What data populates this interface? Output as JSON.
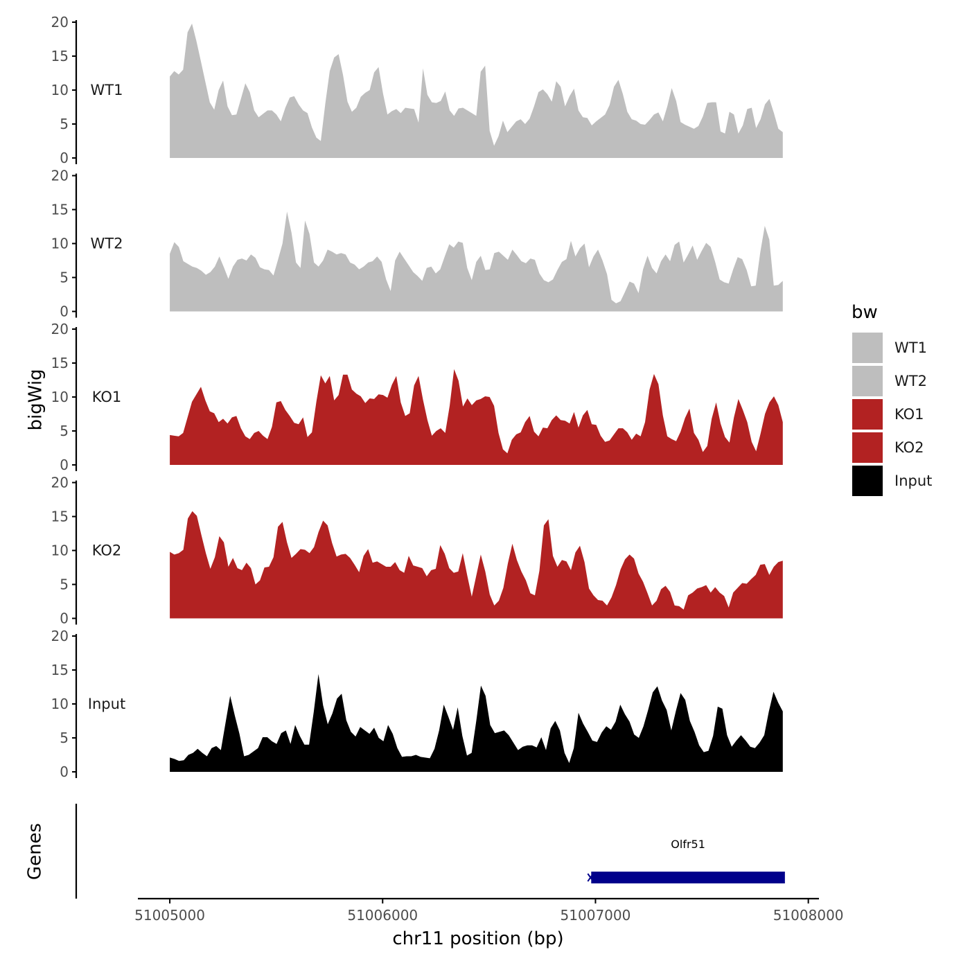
{
  "chart_data": {
    "type": "area",
    "title": "",
    "ylabel": "bigWig",
    "xlabel": "chr11 position (bp)",
    "genes_label": "Genes",
    "ylim": [
      0,
      20
    ],
    "yticks": [
      0,
      5,
      10,
      15,
      20
    ],
    "ytick_labels": [
      "0",
      "5",
      "10",
      "15",
      "20"
    ],
    "xlim": [
      51004850,
      51008050
    ],
    "xticks": [
      51005000,
      51006000,
      51007000,
      51008000
    ],
    "xtick_labels": [
      "51005000",
      "51006000",
      "51007000",
      "51008000"
    ],
    "x_start": 51005000,
    "x_end": 51007880,
    "legend": {
      "title": "bw",
      "entries": [
        {
          "label": "WT1",
          "color": "#bebebe"
        },
        {
          "label": "WT2",
          "color": "#bebebe"
        },
        {
          "label": "KO1",
          "color": "#b22222"
        },
        {
          "label": "KO2",
          "color": "#b22222"
        },
        {
          "label": "Input",
          "color": "#000000"
        }
      ]
    },
    "series": [
      {
        "name": "WT1",
        "color": "#bebebe",
        "values": [
          12,
          12.8,
          12.3,
          13,
          18.5,
          19.8,
          17.2,
          14.2,
          11.2,
          8.2,
          7.1,
          10,
          11.4,
          7.6,
          6.3,
          6.4,
          8.7,
          11,
          9.7,
          7,
          6,
          6.5,
          7,
          7,
          6.4,
          5.4,
          7.4,
          8.9,
          9.1,
          7.9,
          7,
          6.6,
          4.5,
          3,
          2.5,
          8,
          12.8,
          14.8,
          15.3,
          12.2,
          8.3,
          6.8,
          7.4,
          9,
          9.6,
          10,
          12.6,
          13.4,
          9.5,
          6.4,
          6.9,
          7.2,
          6.6,
          7.4,
          7.3,
          7.2,
          5.2,
          13.2,
          9.3,
          8.2,
          8.1,
          8.4,
          9.8,
          7,
          6.2,
          7.3,
          7.4,
          7,
          6.6,
          6.2,
          12.7,
          13.6,
          4,
          1.8,
          3.2,
          5.5,
          3.8,
          4.6,
          5.4,
          5.7,
          5,
          5.8,
          7.6,
          9.7,
          10.1,
          9.4,
          8.3,
          11.3,
          10.5,
          7.6,
          9.1,
          10.2,
          7,
          6,
          5.9,
          4.8,
          5.4,
          5.9,
          6.4,
          7.8,
          10.5,
          11.5,
          9.4,
          6.8,
          5.7,
          5.5,
          5,
          4.9,
          5.6,
          6.4,
          6.7,
          5.4,
          7.6,
          10.3,
          8.4,
          5.3,
          4.9,
          4.6,
          4.3,
          4.7,
          6.1,
          8.1,
          8.2,
          8.2,
          3.9,
          3.6,
          6.8,
          6.4,
          3.6,
          4.8,
          7.2,
          7.4,
          4.4,
          5.7,
          7.9,
          8.7,
          6.6,
          4.3,
          3.8
        ]
      },
      {
        "name": "WT2",
        "color": "#bebebe",
        "values": [
          8.5,
          10.2,
          9.5,
          7.4,
          7,
          6.6,
          6.4,
          6,
          5.4,
          5.8,
          6.6,
          8.1,
          6.5,
          4.8,
          6.6,
          7.6,
          7.8,
          7.5,
          8.4,
          7.9,
          6.5,
          6.2,
          6.1,
          5.3,
          7.6,
          10,
          14.7,
          11.6,
          7.2,
          6.4,
          13.4,
          11.4,
          7.2,
          6.6,
          7.5,
          9.1,
          8.8,
          8.4,
          8.6,
          8.4,
          7.2,
          6.9,
          6.2,
          6.6,
          7.2,
          7.4,
          8.1,
          7.3,
          4.7,
          3,
          7.5,
          8.8,
          7.8,
          6.8,
          5.8,
          5.2,
          4.5,
          6.4,
          6.6,
          5.6,
          6.2,
          8.1,
          9.9,
          9.4,
          10.3,
          10.1,
          6.4,
          4.6,
          7.3,
          8.2,
          6.1,
          6.2,
          8.6,
          8.8,
          8.2,
          7.6,
          9.1,
          8.3,
          7.4,
          7.1,
          7.8,
          7.6,
          5.6,
          4.6,
          4.3,
          4.7,
          6.1,
          7.3,
          7.7,
          10.4,
          8.1,
          9.3,
          10,
          6.5,
          8.1,
          9.1,
          7.5,
          5.5,
          1.7,
          1.2,
          1.5,
          2.9,
          4.4,
          4.1,
          2.7,
          6.2,
          8.2,
          6.4,
          5.6,
          7.4,
          8.4,
          7.4,
          9.8,
          10.3,
          7.2,
          8.4,
          9.7,
          7.6,
          8.9,
          10.1,
          9.5,
          7.3,
          4.7,
          4.3,
          4.1,
          6.2,
          8,
          7.7,
          6.1,
          3.7,
          3.8,
          8.7,
          12.6,
          10.6,
          3.8,
          3.9,
          4.5
        ]
      },
      {
        "name": "KO1",
        "color": "#b22222",
        "values": [
          4.4,
          4.3,
          4.2,
          4.7,
          7,
          9.3,
          10.4,
          11.5,
          9.5,
          7.9,
          7.6,
          6.3,
          6.8,
          6.1,
          7,
          7.2,
          5.4,
          4.2,
          3.8,
          4.7,
          5,
          4.3,
          3.8,
          5.6,
          9.2,
          9.4,
          8.1,
          7.2,
          6.2,
          6,
          7,
          4.1,
          4.8,
          9.3,
          13.2,
          12,
          13.1,
          9.5,
          10.3,
          13.3,
          13.3,
          11.1,
          10.5,
          10.1,
          9.1,
          9.8,
          9.7,
          10.4,
          10.3,
          9.9,
          11.8,
          13.1,
          9.2,
          7.2,
          7.6,
          11.7,
          13.1,
          9.6,
          6.6,
          4.3,
          5,
          5.4,
          4.7,
          8.7,
          14.1,
          12.4,
          8.6,
          9.8,
          8.8,
          9.5,
          9.7,
          10.1,
          10,
          8.7,
          4.7,
          2.3,
          1.7,
          3.7,
          4.5,
          4.8,
          6.3,
          7.2,
          4.9,
          4.2,
          5.5,
          5.4,
          6.6,
          7.3,
          6.6,
          6.5,
          6.1,
          7.8,
          5.5,
          7.3,
          8.1,
          6,
          5.9,
          4.3,
          3.4,
          3.6,
          4.5,
          5.4,
          5.4,
          4.8,
          3.7,
          4.6,
          4.2,
          6.3,
          11.1,
          13.4,
          11.9,
          7.3,
          4.2,
          3.8,
          3.5,
          4.9,
          6.9,
          8.3,
          4.7,
          3.7,
          1.9,
          2.8,
          6.8,
          9.2,
          6.1,
          4.1,
          3.3,
          7,
          9.7,
          8.1,
          6.3,
          3.4,
          2,
          4.6,
          7.5,
          9.2,
          10.1,
          8.8,
          6.3
        ]
      },
      {
        "name": "KO2",
        "color": "#b22222",
        "values": [
          9.8,
          9.4,
          9.6,
          10.1,
          14.7,
          15.8,
          15.1,
          12.3,
          9.6,
          7.3,
          9,
          12.1,
          11.2,
          7.6,
          8.9,
          7.4,
          7.1,
          8.2,
          7.4,
          5,
          5.6,
          7.5,
          7.6,
          9,
          13.5,
          14.2,
          11.2,
          8.9,
          9.5,
          10.2,
          10.1,
          9.6,
          10.5,
          12.7,
          14.4,
          13.7,
          11.1,
          9.1,
          9.4,
          9.5,
          8.9,
          7.9,
          6.8,
          9.2,
          10.2,
          8.2,
          8.4,
          8,
          7.6,
          7.6,
          8.3,
          7.1,
          6.7,
          9.2,
          7.8,
          7.6,
          7.4,
          6.2,
          7.1,
          7.3,
          10.8,
          9.5,
          7.4,
          6.7,
          6.9,
          9.6,
          6.3,
          3.2,
          6.3,
          9.4,
          6.9,
          3.5,
          1.9,
          2.6,
          4.5,
          8.1,
          11,
          8.6,
          6.9,
          5.6,
          3.7,
          3.4,
          7,
          13.7,
          14.6,
          9.2,
          7.6,
          8.6,
          8.4,
          7.1,
          9.7,
          10.7,
          8.3,
          4.4,
          3.4,
          2.7,
          2.6,
          1.9,
          3.1,
          4.9,
          7.2,
          8.7,
          9.4,
          8.8,
          6.6,
          5.4,
          3.7,
          1.9,
          2.6,
          4.3,
          4.8,
          3.9,
          1.9,
          1.8,
          1.3,
          3.4,
          3.8,
          4.4,
          4.6,
          4.9,
          3.8,
          4.6,
          3.8,
          3.3,
          1.6,
          3.8,
          4.5,
          5.2,
          5.1,
          5.8,
          6.4,
          7.9,
          8,
          6.4,
          7.6,
          8.3,
          8.5
        ]
      },
      {
        "name": "Input",
        "color": "#000000",
        "values": [
          2.1,
          1.9,
          1.6,
          1.7,
          2.5,
          2.8,
          3.4,
          2.8,
          2.3,
          3.5,
          3.8,
          3.2,
          7.2,
          11.2,
          8.3,
          5.6,
          2.3,
          2.5,
          3,
          3.5,
          5.1,
          5.1,
          4.5,
          4.1,
          5.7,
          6.1,
          4.1,
          6.9,
          5.3,
          4,
          4,
          8.8,
          14.4,
          9.8,
          7,
          8.6,
          10.8,
          11.5,
          7.6,
          5.9,
          5.2,
          6.6,
          6.1,
          5.6,
          6.5,
          5,
          4.5,
          6.9,
          5.6,
          3.5,
          2.2,
          2.3,
          2.3,
          2.5,
          2.2,
          2.1,
          2,
          3.4,
          6.1,
          9.9,
          8.1,
          6.2,
          9.5,
          5.3,
          2.4,
          2.8,
          7.5,
          12.7,
          11.2,
          6.9,
          5.7,
          5.9,
          6.1,
          5.4,
          4.3,
          3.2,
          3.7,
          3.9,
          3.9,
          3.6,
          5.1,
          3.2,
          6.4,
          7.5,
          6.1,
          2.8,
          1.3,
          3.5,
          8.7,
          7.1,
          5.9,
          4.6,
          4.4,
          5.8,
          6.7,
          6.2,
          7.4,
          9.9,
          8.5,
          7.4,
          5.5,
          5,
          6.7,
          9.1,
          11.7,
          12.6,
          10.5,
          9.1,
          6.1,
          9,
          11.6,
          10.6,
          7.5,
          5.9,
          3.9,
          2.9,
          3.1,
          5.3,
          9.6,
          9.3,
          5.4,
          3.7,
          4.6,
          5.4,
          4.6,
          3.7,
          3.5,
          4.3,
          5.4,
          8.9,
          11.8,
          10.2,
          8.9
        ]
      }
    ],
    "genes": [
      {
        "name": "Olfr51",
        "start": 51006980,
        "end": 51007890,
        "strand": "-",
        "color": "#00008b"
      }
    ]
  }
}
